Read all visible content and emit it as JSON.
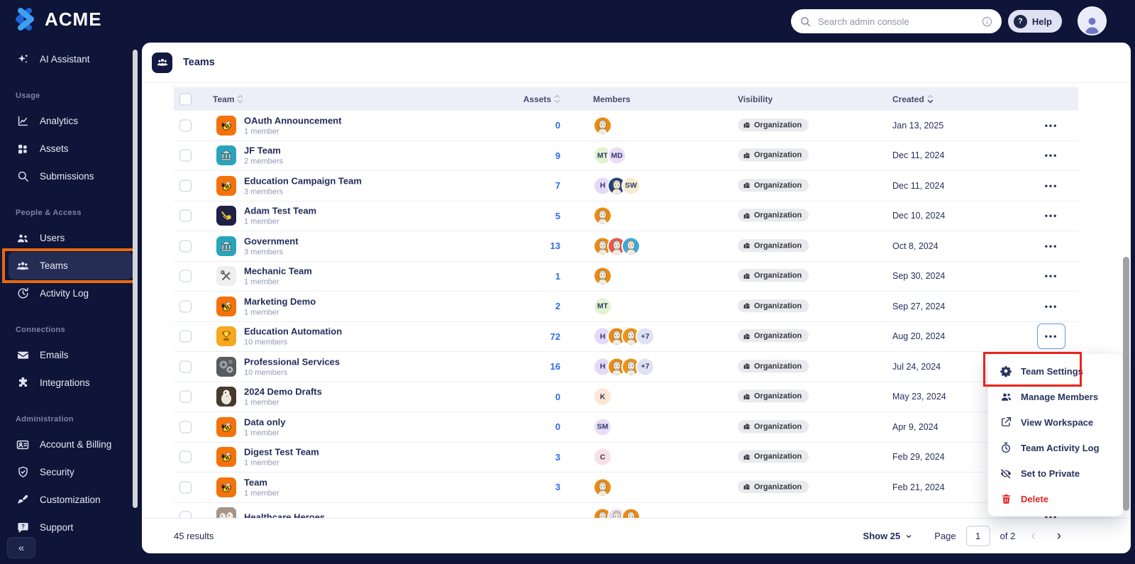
{
  "brand": {
    "name": "ACME"
  },
  "topbar": {
    "search_placeholder": "Search admin console",
    "help_label": "Help"
  },
  "sidebar": {
    "assistant": {
      "label": "AI Assistant",
      "icon": "sparkles-icon"
    },
    "sections": [
      {
        "label": "Usage",
        "items": [
          {
            "label": "Analytics",
            "icon": "analytics-icon"
          },
          {
            "label": "Assets",
            "icon": "assets-icon"
          },
          {
            "label": "Submissions",
            "icon": "search-icon"
          }
        ]
      },
      {
        "label": "People & Access",
        "items": [
          {
            "label": "Users",
            "icon": "users-icon"
          },
          {
            "label": "Teams",
            "icon": "teams-icon",
            "selected": true,
            "annotated": true
          },
          {
            "label": "Activity Log",
            "icon": "clock-icon"
          }
        ]
      },
      {
        "label": "Connections",
        "items": [
          {
            "label": "Emails",
            "icon": "envelope-icon"
          },
          {
            "label": "Integrations",
            "icon": "puzzle-icon"
          }
        ]
      },
      {
        "label": "Administration",
        "items": [
          {
            "label": "Account & Billing",
            "icon": "id-card-icon"
          },
          {
            "label": "Security",
            "icon": "shield-icon"
          },
          {
            "label": "Customization",
            "icon": "brush-icon"
          },
          {
            "label": "Support",
            "icon": "chat-question-icon"
          }
        ]
      }
    ],
    "collapse_label": "«"
  },
  "page": {
    "title": "Teams"
  },
  "table": {
    "columns": [
      "Team",
      "Assets",
      "Members",
      "Visibility",
      "Created"
    ],
    "rows": [
      {
        "name": "OAuth Announcement",
        "sub": "1 member",
        "assets": "0",
        "icon": "bee",
        "icon_bg": "#f4720c",
        "visibility": "Organization",
        "created": "Jan 13, 2025",
        "avatars": [
          {
            "kind": "face",
            "bg": "#ef8a0e"
          }
        ]
      },
      {
        "name": "JF Team",
        "sub": "2 members",
        "assets": "9",
        "icon": "building",
        "icon_bg": "#28a5bc",
        "visibility": "Organization",
        "created": "Dec 11, 2024",
        "avatars": [
          {
            "kind": "initials",
            "text": "MT",
            "bg": "#e3f3cf"
          },
          {
            "kind": "initials",
            "text": "MD",
            "bg": "#ecdcf7"
          }
        ]
      },
      {
        "name": "Education Campaign Team",
        "sub": "3 members",
        "assets": "7",
        "icon": "bee",
        "icon_bg": "#f4720c",
        "visibility": "Organization",
        "created": "Dec 11, 2024",
        "avatars": [
          {
            "kind": "initials",
            "text": "H",
            "bg": "#e3d9f8"
          },
          {
            "kind": "face",
            "bg": "#27407c"
          },
          {
            "kind": "initials",
            "text": "SW",
            "bg": "#f6eccf"
          }
        ]
      },
      {
        "name": "Adam Test Team",
        "sub": "1 member",
        "assets": "5",
        "icon": "comet",
        "icon_bg": "#1d2147",
        "visibility": "Organization",
        "created": "Dec 10, 2024",
        "avatars": [
          {
            "kind": "face",
            "bg": "#ef8a0e"
          }
        ]
      },
      {
        "name": "Government",
        "sub": "3 members",
        "assets": "13",
        "icon": "building",
        "icon_bg": "#28a5bc",
        "visibility": "Organization",
        "created": "Oct 8, 2024",
        "avatars": [
          {
            "kind": "face",
            "bg": "#ef8a0e"
          },
          {
            "kind": "face",
            "bg": "#e8574d"
          },
          {
            "kind": "face",
            "bg": "#3fa8dc"
          }
        ]
      },
      {
        "name": "Mechanic Team",
        "sub": "1 member",
        "assets": "1",
        "icon": "tools",
        "icon_bg": "#efeff0",
        "visibility": "Organization",
        "created": "Sep 30, 2024",
        "avatars": [
          {
            "kind": "face",
            "bg": "#ef8a0e"
          }
        ]
      },
      {
        "name": "Marketing Demo",
        "sub": "1 member",
        "assets": "2",
        "icon": "bee",
        "icon_bg": "#f4720c",
        "visibility": "Organization",
        "created": "Sep 27, 2024",
        "avatars": [
          {
            "kind": "initials",
            "text": "MT",
            "bg": "#e3f3cf"
          }
        ]
      },
      {
        "name": "Education Automation",
        "sub": "10 members",
        "assets": "72",
        "icon": "trophy",
        "icon_bg": "#f6a91a",
        "visibility": "Organization",
        "created": "Aug 20, 2024",
        "menu_open": true,
        "avatars": [
          {
            "kind": "initials",
            "text": "H",
            "bg": "#e3d9f8"
          },
          {
            "kind": "face",
            "bg": "#ef8a0e"
          },
          {
            "kind": "face",
            "bg": "#f0940f"
          },
          {
            "kind": "more",
            "text": "+7",
            "bg": "#e0e2f2"
          }
        ]
      },
      {
        "name": "Professional Services",
        "sub": "10 members",
        "assets": "16",
        "icon": "gears",
        "icon_bg": "#585b60",
        "visibility": "Organization",
        "created": "Jul 24, 2024",
        "avatars": [
          {
            "kind": "initials",
            "text": "H",
            "bg": "#e3d9f8"
          },
          {
            "kind": "face",
            "bg": "#ef8a0e"
          },
          {
            "kind": "face",
            "bg": "#f0940f"
          },
          {
            "kind": "more",
            "text": "+7",
            "bg": "#e0e2f2"
          }
        ]
      },
      {
        "name": "2024 Demo Drafts",
        "sub": "1 member",
        "assets": "0",
        "icon": "bird",
        "icon_bg": "#47392e",
        "visibility": "Organization",
        "created": "May 23, 2024",
        "avatars": [
          {
            "kind": "initials",
            "text": "K",
            "bg": "#fbe7d2"
          }
        ]
      },
      {
        "name": "Data only",
        "sub": "1 member",
        "assets": "0",
        "icon": "bee",
        "icon_bg": "#f4720c",
        "visibility": "Organization",
        "created": "Apr 9, 2024",
        "avatars": [
          {
            "kind": "initials",
            "text": "SM",
            "bg": "#e9def6"
          }
        ]
      },
      {
        "name": "Digest Test Team",
        "sub": "1 member",
        "assets": "3",
        "icon": "bee",
        "icon_bg": "#f4720c",
        "visibility": "Organization",
        "created": "Feb 29, 2024",
        "avatars": [
          {
            "kind": "initials",
            "text": "C",
            "bg": "#fadfe3"
          }
        ]
      },
      {
        "name": "Team",
        "sub": "1 member",
        "assets": "3",
        "icon": "bee",
        "icon_bg": "#f4720c",
        "visibility": "Organization",
        "created": "Feb 21, 2024",
        "avatars": [
          {
            "kind": "face",
            "bg": "#ef8a0e"
          }
        ]
      },
      {
        "name": "Healthcare Heroes",
        "sub": "",
        "assets": "",
        "icon": "healthcare",
        "icon_bg": "#a3958a",
        "visibility": "",
        "created": "",
        "avatars": [
          {
            "kind": "face",
            "bg": "#ef8a0e"
          },
          {
            "kind": "face",
            "bg": "#e8d9f0"
          },
          {
            "kind": "face",
            "bg": "#ef8a0e"
          }
        ]
      }
    ]
  },
  "menu": {
    "items": [
      {
        "label": "Team Settings",
        "icon": "gear-icon",
        "annotated": true
      },
      {
        "label": "Manage Members",
        "icon": "manage-members-icon"
      },
      {
        "label": "View Workspace",
        "icon": "external-link-icon"
      },
      {
        "label": "Team Activity Log",
        "icon": "stopwatch-icon"
      },
      {
        "label": "Set to Private",
        "icon": "eye-off-icon"
      },
      {
        "label": "Delete",
        "icon": "trash-icon",
        "danger": true
      }
    ]
  },
  "footer": {
    "results": "45 results",
    "show_label": "Show 25",
    "page_label": "Page",
    "page_value": "1",
    "of_label": "of 2"
  },
  "colors": {
    "sidebar_bg": "#0e1538",
    "selected_item_bg": "#262d54",
    "annotation_orange": "#e8680f",
    "annotation_red": "#e8251b",
    "link_blue": "#2e6be6",
    "table_header_bg": "#edeff8",
    "badge_bg": "#e9e9ee"
  }
}
